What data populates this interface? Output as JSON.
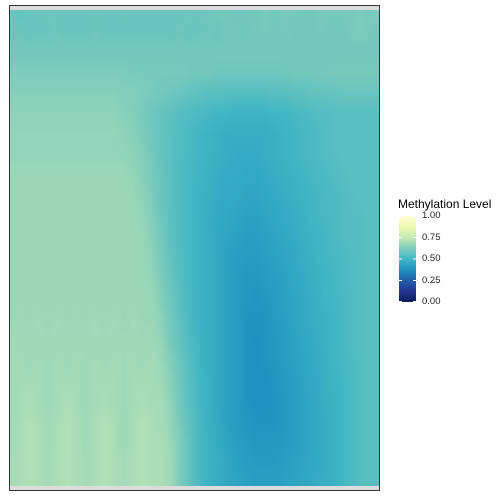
{
  "chart_data": {
    "type": "heatmap",
    "title": "",
    "xlabel": "",
    "ylabel": "",
    "legend": {
      "title": "Methylation Level",
      "placement": "right",
      "ticks": [
        "0.00",
        "0.25",
        "0.50",
        "0.75",
        "1.00"
      ],
      "range": [
        0,
        1
      ]
    },
    "colormap": [
      "#081d58",
      "#253494",
      "#225ea8",
      "#1d91c0",
      "#41b6c4",
      "#7fcdbb",
      "#c7e9b4",
      "#edf8b1",
      "#ffffd9"
    ],
    "grid": false,
    "columns": 40,
    "rows": 24,
    "row_values": [
      [
        0.58,
        0.57,
        0.58,
        0.58,
        0.59,
        0.58,
        0.58,
        0.58,
        0.58,
        0.59,
        0.58,
        0.58,
        0.59,
        0.58,
        0.58,
        0.58,
        0.58,
        0.58,
        0.58,
        0.59,
        0.59,
        0.59,
        0.6,
        0.6,
        0.59,
        0.6,
        0.6,
        0.61,
        0.6,
        0.61,
        0.61,
        0.6,
        0.6,
        0.61,
        0.61,
        0.61,
        0.61,
        0.62,
        0.61,
        0.63
      ],
      [
        0.58,
        0.59,
        0.58,
        0.58,
        0.58,
        0.59,
        0.58,
        0.58,
        0.58,
        0.59,
        0.58,
        0.58,
        0.58,
        0.58,
        0.58,
        0.58,
        0.58,
        0.58,
        0.59,
        0.58,
        0.58,
        0.59,
        0.58,
        0.6,
        0.6,
        0.59,
        0.6,
        0.61,
        0.6,
        0.61,
        0.6,
        0.6,
        0.6,
        0.61,
        0.6,
        0.6,
        0.61,
        0.62,
        0.61,
        0.6
      ],
      [
        0.6,
        0.6,
        0.6,
        0.6,
        0.6,
        0.6,
        0.6,
        0.6,
        0.6,
        0.6,
        0.6,
        0.6,
        0.6,
        0.6,
        0.6,
        0.6,
        0.6,
        0.6,
        0.6,
        0.6,
        0.6,
        0.6,
        0.6,
        0.6,
        0.6,
        0.6,
        0.6,
        0.6,
        0.6,
        0.6,
        0.6,
        0.6,
        0.6,
        0.6,
        0.6,
        0.6,
        0.6,
        0.6,
        0.6,
        0.6
      ],
      [
        0.62,
        0.62,
        0.62,
        0.62,
        0.62,
        0.62,
        0.62,
        0.62,
        0.62,
        0.62,
        0.62,
        0.62,
        0.62,
        0.61,
        0.61,
        0.61,
        0.61,
        0.61,
        0.61,
        0.6,
        0.6,
        0.6,
        0.59,
        0.59,
        0.59,
        0.59,
        0.59,
        0.59,
        0.59,
        0.59,
        0.6,
        0.6,
        0.6,
        0.6,
        0.61,
        0.61,
        0.61,
        0.61,
        0.61,
        0.61
      ],
      [
        0.64,
        0.64,
        0.64,
        0.64,
        0.64,
        0.64,
        0.64,
        0.64,
        0.64,
        0.64,
        0.64,
        0.64,
        0.63,
        0.63,
        0.62,
        0.61,
        0.6,
        0.59,
        0.58,
        0.57,
        0.56,
        0.55,
        0.55,
        0.54,
        0.54,
        0.54,
        0.54,
        0.54,
        0.55,
        0.55,
        0.56,
        0.56,
        0.57,
        0.57,
        0.57,
        0.58,
        0.58,
        0.58,
        0.58,
        0.58
      ],
      [
        0.65,
        0.65,
        0.65,
        0.65,
        0.65,
        0.65,
        0.65,
        0.65,
        0.65,
        0.65,
        0.65,
        0.65,
        0.64,
        0.63,
        0.61,
        0.59,
        0.57,
        0.56,
        0.54,
        0.53,
        0.52,
        0.51,
        0.5,
        0.5,
        0.49,
        0.49,
        0.49,
        0.49,
        0.5,
        0.5,
        0.51,
        0.52,
        0.53,
        0.54,
        0.54,
        0.55,
        0.55,
        0.55,
        0.55,
        0.55
      ],
      [
        0.66,
        0.66,
        0.66,
        0.66,
        0.66,
        0.66,
        0.66,
        0.66,
        0.66,
        0.66,
        0.66,
        0.66,
        0.65,
        0.64,
        0.62,
        0.59,
        0.57,
        0.55,
        0.53,
        0.52,
        0.5,
        0.49,
        0.48,
        0.47,
        0.47,
        0.47,
        0.47,
        0.47,
        0.48,
        0.49,
        0.5,
        0.51,
        0.52,
        0.53,
        0.54,
        0.55,
        0.55,
        0.55,
        0.55,
        0.55
      ],
      [
        0.66,
        0.66,
        0.66,
        0.66,
        0.66,
        0.66,
        0.66,
        0.66,
        0.66,
        0.66,
        0.66,
        0.66,
        0.66,
        0.65,
        0.63,
        0.6,
        0.57,
        0.55,
        0.53,
        0.52,
        0.5,
        0.49,
        0.48,
        0.47,
        0.46,
        0.46,
        0.46,
        0.47,
        0.48,
        0.49,
        0.5,
        0.51,
        0.52,
        0.53,
        0.54,
        0.55,
        0.55,
        0.55,
        0.55,
        0.55
      ],
      [
        0.67,
        0.67,
        0.67,
        0.67,
        0.67,
        0.67,
        0.67,
        0.67,
        0.67,
        0.67,
        0.67,
        0.67,
        0.67,
        0.66,
        0.64,
        0.61,
        0.58,
        0.55,
        0.53,
        0.51,
        0.5,
        0.48,
        0.47,
        0.46,
        0.46,
        0.45,
        0.45,
        0.46,
        0.47,
        0.48,
        0.49,
        0.5,
        0.51,
        0.52,
        0.53,
        0.54,
        0.55,
        0.55,
        0.55,
        0.55
      ],
      [
        0.67,
        0.67,
        0.67,
        0.67,
        0.67,
        0.67,
        0.67,
        0.67,
        0.67,
        0.67,
        0.67,
        0.67,
        0.67,
        0.67,
        0.65,
        0.62,
        0.58,
        0.55,
        0.53,
        0.51,
        0.49,
        0.48,
        0.46,
        0.45,
        0.45,
        0.44,
        0.44,
        0.45,
        0.46,
        0.47,
        0.48,
        0.49,
        0.5,
        0.51,
        0.52,
        0.53,
        0.54,
        0.55,
        0.55,
        0.55
      ],
      [
        0.67,
        0.67,
        0.67,
        0.67,
        0.67,
        0.67,
        0.67,
        0.67,
        0.67,
        0.67,
        0.67,
        0.67,
        0.67,
        0.67,
        0.66,
        0.63,
        0.59,
        0.56,
        0.53,
        0.51,
        0.49,
        0.47,
        0.46,
        0.45,
        0.44,
        0.43,
        0.43,
        0.44,
        0.45,
        0.46,
        0.47,
        0.48,
        0.5,
        0.51,
        0.52,
        0.53,
        0.54,
        0.54,
        0.55,
        0.55
      ],
      [
        0.67,
        0.67,
        0.67,
        0.67,
        0.67,
        0.67,
        0.67,
        0.67,
        0.67,
        0.67,
        0.67,
        0.67,
        0.67,
        0.67,
        0.67,
        0.64,
        0.6,
        0.56,
        0.53,
        0.51,
        0.49,
        0.47,
        0.45,
        0.44,
        0.43,
        0.42,
        0.42,
        0.43,
        0.44,
        0.45,
        0.46,
        0.48,
        0.49,
        0.5,
        0.52,
        0.53,
        0.54,
        0.54,
        0.55,
        0.55
      ],
      [
        0.67,
        0.67,
        0.67,
        0.67,
        0.67,
        0.67,
        0.67,
        0.67,
        0.67,
        0.67,
        0.67,
        0.67,
        0.67,
        0.67,
        0.67,
        0.65,
        0.61,
        0.57,
        0.54,
        0.51,
        0.49,
        0.47,
        0.45,
        0.43,
        0.42,
        0.41,
        0.41,
        0.42,
        0.43,
        0.44,
        0.45,
        0.47,
        0.48,
        0.5,
        0.51,
        0.52,
        0.53,
        0.54,
        0.55,
        0.55
      ],
      [
        0.67,
        0.67,
        0.67,
        0.67,
        0.67,
        0.67,
        0.67,
        0.67,
        0.67,
        0.67,
        0.67,
        0.67,
        0.67,
        0.67,
        0.67,
        0.66,
        0.62,
        0.58,
        0.54,
        0.51,
        0.49,
        0.47,
        0.45,
        0.43,
        0.41,
        0.4,
        0.4,
        0.41,
        0.42,
        0.43,
        0.45,
        0.46,
        0.48,
        0.49,
        0.5,
        0.52,
        0.53,
        0.54,
        0.55,
        0.55
      ],
      [
        0.67,
        0.67,
        0.67,
        0.67,
        0.67,
        0.67,
        0.67,
        0.67,
        0.67,
        0.67,
        0.67,
        0.67,
        0.67,
        0.67,
        0.67,
        0.67,
        0.63,
        0.59,
        0.55,
        0.52,
        0.49,
        0.47,
        0.45,
        0.43,
        0.41,
        0.4,
        0.39,
        0.4,
        0.41,
        0.43,
        0.44,
        0.46,
        0.47,
        0.49,
        0.5,
        0.51,
        0.53,
        0.54,
        0.55,
        0.55
      ],
      [
        0.67,
        0.68,
        0.67,
        0.68,
        0.67,
        0.68,
        0.67,
        0.68,
        0.67,
        0.68,
        0.67,
        0.68,
        0.67,
        0.68,
        0.67,
        0.67,
        0.65,
        0.6,
        0.56,
        0.52,
        0.49,
        0.47,
        0.45,
        0.43,
        0.41,
        0.39,
        0.39,
        0.39,
        0.41,
        0.42,
        0.44,
        0.45,
        0.47,
        0.48,
        0.5,
        0.51,
        0.53,
        0.54,
        0.55,
        0.55
      ],
      [
        0.68,
        0.68,
        0.68,
        0.68,
        0.68,
        0.68,
        0.68,
        0.68,
        0.68,
        0.68,
        0.68,
        0.68,
        0.68,
        0.68,
        0.68,
        0.68,
        0.66,
        0.61,
        0.57,
        0.53,
        0.5,
        0.47,
        0.45,
        0.43,
        0.41,
        0.39,
        0.38,
        0.39,
        0.4,
        0.42,
        0.43,
        0.45,
        0.46,
        0.48,
        0.49,
        0.51,
        0.53,
        0.54,
        0.55,
        0.55
      ],
      [
        0.68,
        0.69,
        0.68,
        0.69,
        0.68,
        0.69,
        0.68,
        0.69,
        0.68,
        0.69,
        0.68,
        0.69,
        0.68,
        0.69,
        0.68,
        0.69,
        0.67,
        0.63,
        0.58,
        0.54,
        0.5,
        0.47,
        0.45,
        0.43,
        0.41,
        0.39,
        0.38,
        0.39,
        0.4,
        0.41,
        0.43,
        0.44,
        0.46,
        0.47,
        0.49,
        0.51,
        0.52,
        0.54,
        0.55,
        0.55
      ],
      [
        0.68,
        0.69,
        0.69,
        0.69,
        0.68,
        0.69,
        0.69,
        0.69,
        0.68,
        0.69,
        0.69,
        0.69,
        0.68,
        0.69,
        0.69,
        0.69,
        0.68,
        0.64,
        0.59,
        0.55,
        0.51,
        0.48,
        0.45,
        0.43,
        0.41,
        0.39,
        0.38,
        0.38,
        0.39,
        0.41,
        0.42,
        0.44,
        0.45,
        0.47,
        0.49,
        0.5,
        0.52,
        0.54,
        0.55,
        0.55
      ],
      [
        0.68,
        0.69,
        0.7,
        0.69,
        0.68,
        0.69,
        0.7,
        0.69,
        0.68,
        0.69,
        0.7,
        0.69,
        0.68,
        0.69,
        0.7,
        0.69,
        0.69,
        0.65,
        0.6,
        0.55,
        0.51,
        0.48,
        0.45,
        0.43,
        0.41,
        0.39,
        0.38,
        0.38,
        0.39,
        0.4,
        0.42,
        0.43,
        0.45,
        0.47,
        0.48,
        0.5,
        0.52,
        0.54,
        0.55,
        0.55
      ],
      [
        0.68,
        0.7,
        0.71,
        0.7,
        0.68,
        0.7,
        0.71,
        0.7,
        0.68,
        0.7,
        0.71,
        0.7,
        0.68,
        0.7,
        0.71,
        0.7,
        0.69,
        0.66,
        0.61,
        0.56,
        0.52,
        0.48,
        0.46,
        0.43,
        0.41,
        0.4,
        0.39,
        0.39,
        0.39,
        0.4,
        0.42,
        0.43,
        0.45,
        0.46,
        0.48,
        0.5,
        0.52,
        0.54,
        0.55,
        0.55
      ],
      [
        0.68,
        0.7,
        0.71,
        0.7,
        0.68,
        0.7,
        0.71,
        0.7,
        0.68,
        0.7,
        0.71,
        0.7,
        0.68,
        0.7,
        0.71,
        0.7,
        0.7,
        0.67,
        0.62,
        0.57,
        0.52,
        0.49,
        0.46,
        0.44,
        0.42,
        0.41,
        0.4,
        0.4,
        0.4,
        0.41,
        0.42,
        0.43,
        0.45,
        0.46,
        0.48,
        0.5,
        0.52,
        0.54,
        0.55,
        0.55
      ],
      [
        0.69,
        0.7,
        0.71,
        0.7,
        0.69,
        0.7,
        0.71,
        0.7,
        0.69,
        0.7,
        0.71,
        0.7,
        0.69,
        0.7,
        0.71,
        0.7,
        0.7,
        0.68,
        0.62,
        0.57,
        0.52,
        0.49,
        0.47,
        0.45,
        0.43,
        0.42,
        0.41,
        0.41,
        0.41,
        0.42,
        0.43,
        0.44,
        0.45,
        0.46,
        0.48,
        0.5,
        0.52,
        0.54,
        0.55,
        0.55
      ],
      [
        0.69,
        0.7,
        0.71,
        0.7,
        0.69,
        0.7,
        0.71,
        0.7,
        0.69,
        0.7,
        0.71,
        0.7,
        0.69,
        0.7,
        0.71,
        0.7,
        0.7,
        0.68,
        0.62,
        0.57,
        0.52,
        0.49,
        0.47,
        0.45,
        0.44,
        0.43,
        0.42,
        0.42,
        0.42,
        0.43,
        0.44,
        0.45,
        0.46,
        0.47,
        0.48,
        0.5,
        0.52,
        0.54,
        0.55,
        0.55
      ]
    ]
  }
}
